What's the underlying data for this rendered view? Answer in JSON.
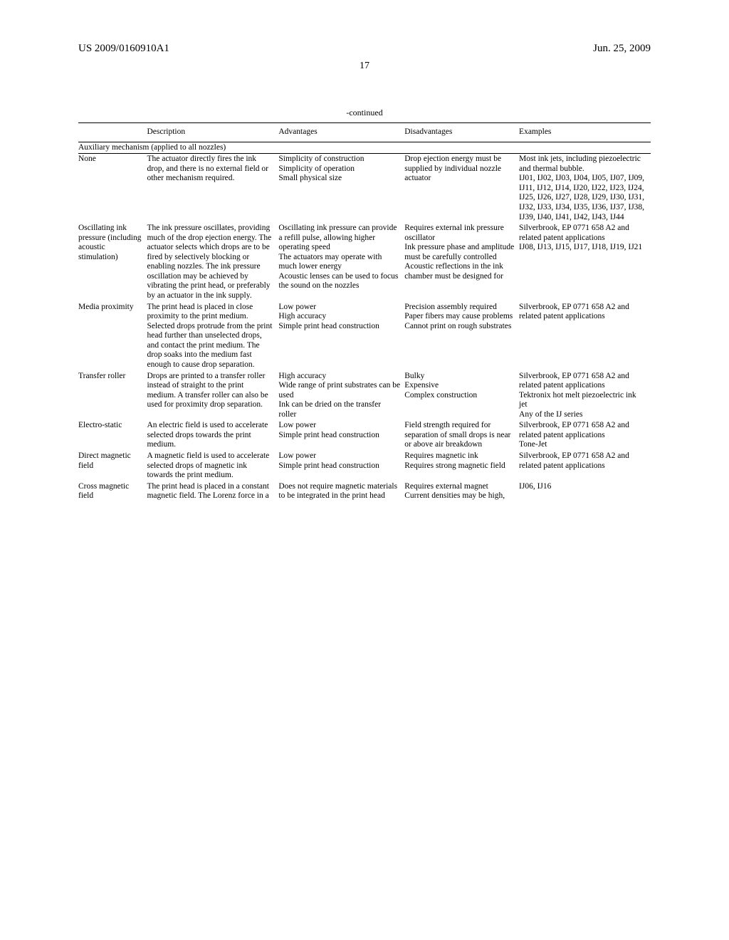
{
  "header": {
    "left": "US 2009/0160910A1",
    "right": "Jun. 25, 2009"
  },
  "pagenum": "17",
  "continued": "-continued",
  "columns": [
    "",
    "Description",
    "Advantages",
    "Disadvantages",
    "Examples"
  ],
  "subheading": "Auxiliary mechanism (applied to all nozzles)",
  "rows": [
    {
      "label": "None",
      "desc": "The actuator directly fires the ink drop, and there is no external field or other mechanism required.",
      "adv": "Simplicity of construction\nSimplicity of operation\nSmall physical size",
      "dis": "Drop ejection energy must be supplied by individual nozzle actuator",
      "ex": "Most ink jets, including piezoelectric and thermal bubble.\nIJ01, IJ02, IJ03, IJ04, IJ05, IJ07, IJ09, IJ11, IJ12, IJ14, IJ20, IJ22, IJ23, IJ24, IJ25, IJ26, IJ27, IJ28, IJ29, IJ30, IJ31, IJ32, IJ33, IJ34, IJ35, IJ36, IJ37, IJ38, IJ39, IJ40, IJ41, IJ42, IJ43, IJ44"
    },
    {
      "label": "Oscillating ink pressure (including acoustic stimulation)",
      "desc": "The ink pressure oscillates, providing much of the drop ejection energy. The actuator selects which drops are to be fired by selectively blocking or enabling nozzles. The ink pressure oscillation may be achieved by vibrating the print head, or preferably by an actuator in the ink supply.",
      "adv": "Oscillating ink pressure can provide a refill pulse, allowing higher operating speed\nThe actuators may operate with much lower energy\nAcoustic lenses can be used to focus the sound on the nozzles",
      "dis": "Requires external ink pressure oscillator\nInk pressure phase and amplitude must be carefully controlled\nAcoustic reflections in the ink chamber must be designed for",
      "ex": "Silverbrook, EP 0771 658 A2 and related patent applications\nIJ08, IJ13, IJ15, IJ17, IJ18, IJ19, IJ21"
    },
    {
      "label": "Media proximity",
      "desc": "The print head is placed in close proximity to the print medium. Selected drops protrude from the print head further than unselected drops, and contact the print medium. The drop soaks into the medium fast enough to cause drop separation.",
      "adv": "Low power\nHigh accuracy\nSimple print head construction",
      "dis": "Precision assembly required\nPaper fibers may cause problems\nCannot print on rough substrates",
      "ex": "Silverbrook, EP 0771 658 A2 and related patent applications"
    },
    {
      "label": "Transfer roller",
      "desc": "Drops are printed to a transfer roller instead of straight to the print medium. A transfer roller can also be used for proximity drop separation.",
      "adv": "High accuracy\nWide range of print substrates can be used\nInk can be dried on the transfer roller",
      "dis": "Bulky\nExpensive\nComplex construction",
      "ex": "Silverbrook, EP 0771 658 A2 and related patent applications\nTektronix hot melt piezoelectric ink jet\nAny of the IJ series"
    },
    {
      "label": "Electro-static",
      "desc": "An electric field is used to accelerate selected drops towards the print medium.",
      "adv": "Low power\nSimple print head construction",
      "dis": "Field strength required for separation of small drops is near or above air breakdown",
      "ex": "Silverbrook, EP 0771 658 A2 and related patent applications\nTone-Jet"
    },
    {
      "label": "Direct magnetic field",
      "desc": "A magnetic field is used to accelerate selected drops of magnetic ink towards the print medium.",
      "adv": "Low power\nSimple print head construction",
      "dis": "Requires magnetic ink\nRequires strong magnetic field",
      "ex": "Silverbrook, EP 0771 658 A2 and related patent applications"
    },
    {
      "label": "Cross magnetic field",
      "desc": "The print head is placed in a constant magnetic field. The Lorenz force in a",
      "adv": "Does not require magnetic materials to be integrated in the print head",
      "dis": "Requires external magnet\nCurrent densities may be high,",
      "ex": "IJ06, IJ16"
    }
  ]
}
